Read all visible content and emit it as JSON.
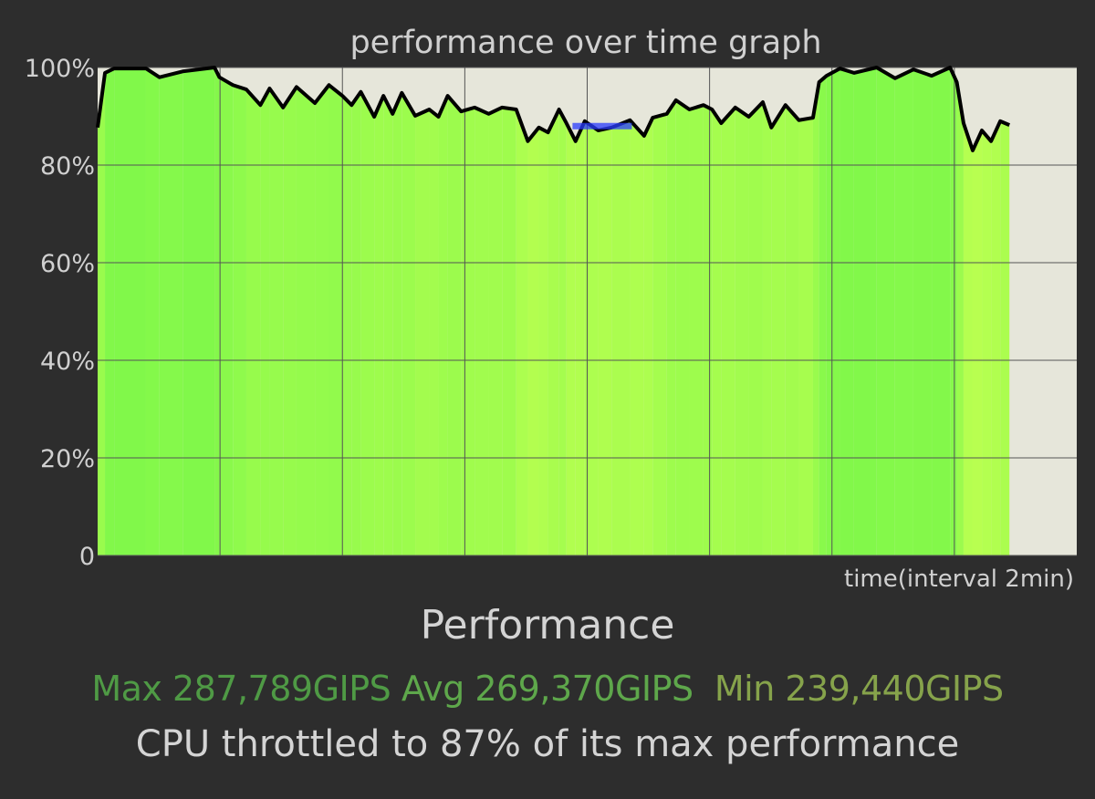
{
  "chart_data": {
    "type": "area",
    "title": "performance over time graph",
    "xlabel": "time(interval 2min)",
    "ylabel": "",
    "x_unit": "min",
    "xlim": [
      0,
      16
    ],
    "ylim": [
      0,
      100
    ],
    "x_grid_interval": 2,
    "yticks": [
      "0",
      "20%",
      "40%",
      "60%",
      "80%",
      "100%"
    ],
    "ytick_values": [
      0,
      20,
      40,
      60,
      80,
      100
    ],
    "grid": true,
    "x": [
      0,
      0.12,
      0.27,
      0.79,
      1.01,
      1.39,
      1.91,
      1.99,
      2.21,
      2.43,
      2.66,
      2.81,
      3.03,
      3.25,
      3.55,
      3.78,
      4.0,
      4.15,
      4.3,
      4.52,
      4.67,
      4.82,
      4.97,
      5.19,
      5.42,
      5.57,
      5.72,
      5.94,
      6.16,
      6.39,
      6.61,
      6.84,
      7.03,
      7.21,
      7.36,
      7.54,
      7.66,
      7.81,
      7.96,
      8.18,
      8.4,
      8.7,
      8.93,
      9.07,
      9.3,
      9.45,
      9.67,
      9.9,
      10.04,
      10.19,
      10.42,
      10.64,
      10.87,
      11.01,
      11.24,
      11.46,
      11.69,
      11.79,
      11.91,
      12.13,
      12.36,
      12.73,
      13.03,
      13.33,
      13.63,
      13.93,
      14.04,
      14.15,
      14.3,
      14.45,
      14.6,
      14.75,
      14.9
    ],
    "values": [
      87.7,
      98.9,
      99.8,
      99.8,
      98,
      99.2,
      100,
      98,
      96.4,
      95.5,
      92.3,
      95.7,
      91.8,
      96,
      92.7,
      96.4,
      94.2,
      92.3,
      95,
      89.9,
      94.2,
      90.5,
      94.8,
      90.1,
      91.4,
      89.9,
      94.2,
      91,
      91.8,
      90.5,
      91.8,
      91.4,
      84.9,
      87.7,
      86.7,
      91.4,
      88.6,
      84.9,
      89,
      87.1,
      87.7,
      89.2,
      86,
      89.7,
      90.5,
      93.3,
      91.4,
      92.3,
      91.4,
      88.6,
      91.8,
      89.9,
      92.9,
      87.7,
      92.3,
      89.2,
      89.7,
      97,
      98.3,
      99.8,
      98.9,
      100,
      97.8,
      99.6,
      98.3,
      100,
      97,
      88.6,
      83,
      87.1,
      84.9,
      89,
      88.2
    ],
    "throttle_marker": {
      "value": 88,
      "x_start": 7.76,
      "x_end": 8.73,
      "color": "#2a3cff"
    },
    "colors": {
      "background": "#2d2d2d",
      "plot_background": "#e6e6da",
      "fill_high": "#80f84a",
      "fill_low": "#b8ff50",
      "line": "#000000",
      "grid": "#555555"
    }
  },
  "summary": {
    "heading": "Performance",
    "max_label": "Max 287,789GIPS",
    "avg_label": "Avg 269,370GIPS",
    "min_label": "Min 239,440GIPS",
    "max_color": "#4f9a45",
    "avg_color": "#5ea74b",
    "min_color": "#86a34b",
    "throttle_text": "CPU throttled to 87% of its max performance"
  }
}
